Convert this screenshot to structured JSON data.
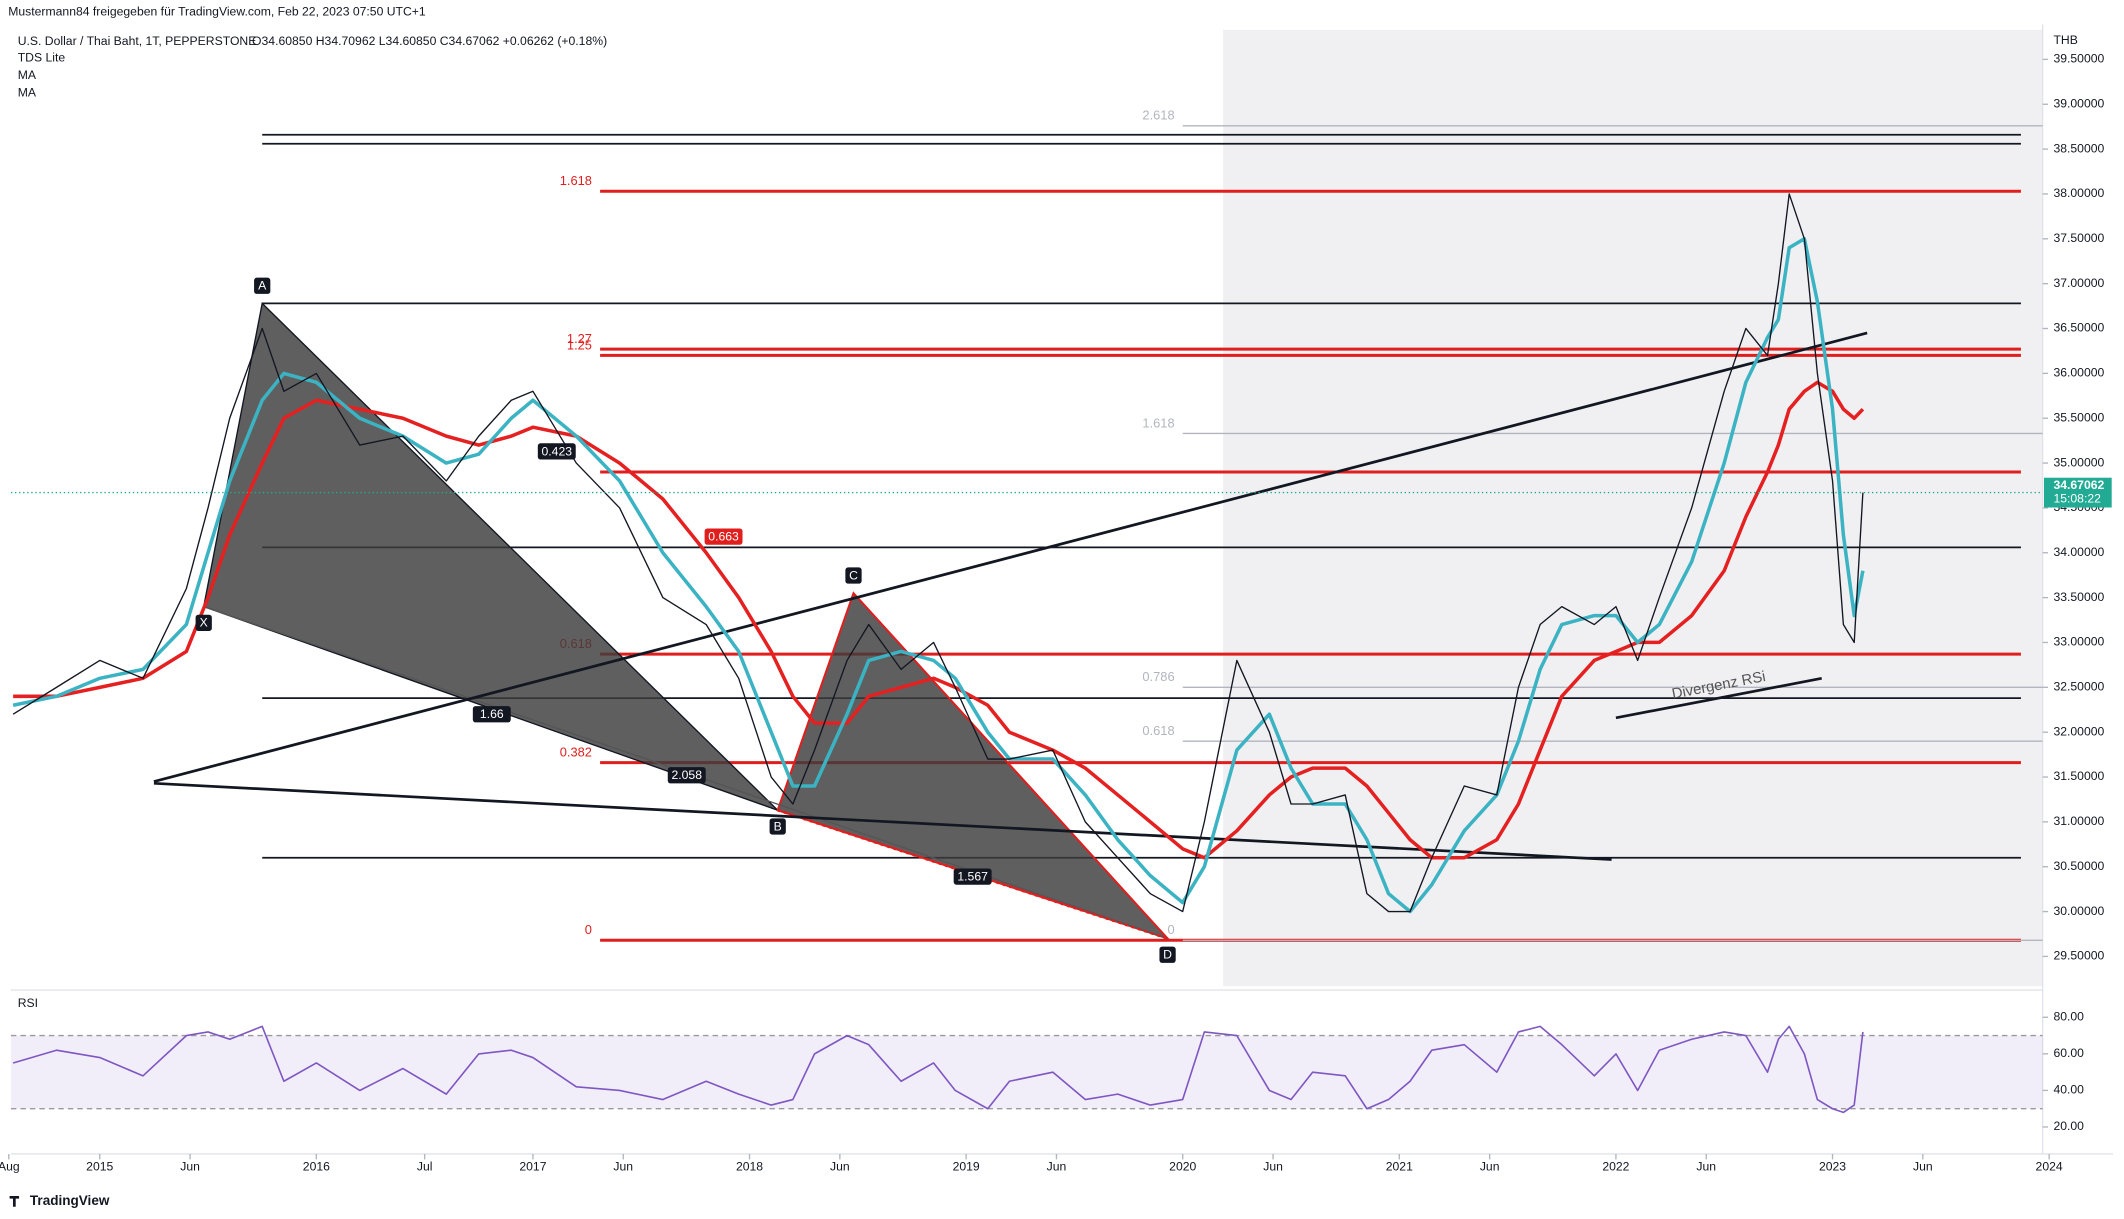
{
  "header": {
    "shared_by": "Mustermann84 freigegeben für TradingView.com, Feb 22, 2023 07:50 UTC+1",
    "brand": "TradingView"
  },
  "chart_data": {
    "type": "line",
    "title": "U.S. Dollar / Thai Baht, 1T, PEPPERSTONE",
    "ohlc": "O34.60850 H34.70962 L34.60850 C34.67062 +0.06262 (+0.18%)",
    "indicators": [
      "TDS Lite"
    ],
    "currency": "THB",
    "countdown": "15:08:22",
    "color": "#131722",
    "x": [
      2014.6,
      2014.8,
      2015.0,
      2015.2,
      2015.4,
      2015.5,
      2015.6,
      2015.75,
      2015.85,
      2016.0,
      2016.2,
      2016.4,
      2016.6,
      2016.75,
      2016.9,
      2017.0,
      2017.2,
      2017.4,
      2017.6,
      2017.8,
      2017.95,
      2018.1,
      2018.2,
      2018.3,
      2018.45,
      2018.55,
      2018.7,
      2018.85,
      2018.95,
      2019.1,
      2019.2,
      2019.4,
      2019.55,
      2019.7,
      2019.85,
      2020.0,
      2020.1,
      2020.25,
      2020.4,
      2020.5,
      2020.6,
      2020.75,
      2020.85,
      2020.95,
      2021.05,
      2021.15,
      2021.3,
      2021.45,
      2021.55,
      2021.65,
      2021.75,
      2021.9,
      2022.0,
      2022.1,
      2022.2,
      2022.35,
      2022.5,
      2022.6,
      2022.7,
      2022.75,
      2022.8,
      2022.87,
      2022.93,
      2023.0,
      2023.05,
      2023.1,
      2023.14
    ],
    "values": [
      32.2,
      32.5,
      32.8,
      32.6,
      33.6,
      34.5,
      35.5,
      36.5,
      35.8,
      36.0,
      35.2,
      35.3,
      34.8,
      35.3,
      35.7,
      35.8,
      35.0,
      34.5,
      33.5,
      33.2,
      32.6,
      31.5,
      31.2,
      31.8,
      32.8,
      33.2,
      32.7,
      33.0,
      32.5,
      31.7,
      31.7,
      31.8,
      31.0,
      30.6,
      30.2,
      30.0,
      31.0,
      32.8,
      32.0,
      31.2,
      31.2,
      31.3,
      30.2,
      30.0,
      30.0,
      30.6,
      31.4,
      31.3,
      32.5,
      33.2,
      33.4,
      33.2,
      33.4,
      32.8,
      33.5,
      34.5,
      35.8,
      36.5,
      36.2,
      37.0,
      38.0,
      37.5,
      36.0,
      34.8,
      33.2,
      33.0,
      34.67062
    ],
    "moving_averages": [
      {
        "name": "MA",
        "color": "#3bb3c3",
        "values": [
          32.3,
          32.4,
          32.6,
          32.7,
          33.2,
          34.0,
          34.8,
          35.7,
          36.0,
          35.9,
          35.5,
          35.3,
          35.0,
          35.1,
          35.5,
          35.7,
          35.3,
          34.8,
          34.0,
          33.4,
          32.9,
          32.0,
          31.4,
          31.4,
          32.2,
          32.8,
          32.9,
          32.8,
          32.6,
          32.0,
          31.7,
          31.7,
          31.3,
          30.8,
          30.4,
          30.1,
          30.5,
          31.8,
          32.2,
          31.6,
          31.2,
          31.2,
          30.8,
          30.2,
          30.0,
          30.3,
          30.9,
          31.3,
          31.9,
          32.7,
          33.2,
          33.3,
          33.3,
          33.0,
          33.2,
          33.9,
          35.0,
          35.9,
          36.4,
          36.6,
          37.4,
          37.5,
          36.8,
          35.6,
          34.2,
          33.3,
          33.8
        ]
      },
      {
        "name": "MA",
        "color": "#e52020",
        "values": [
          32.4,
          32.4,
          32.5,
          32.6,
          32.9,
          33.5,
          34.2,
          35.0,
          35.5,
          35.7,
          35.6,
          35.5,
          35.3,
          35.2,
          35.3,
          35.4,
          35.3,
          35.0,
          34.6,
          34.0,
          33.5,
          32.9,
          32.4,
          32.1,
          32.1,
          32.4,
          32.5,
          32.6,
          32.5,
          32.3,
          32.0,
          31.8,
          31.6,
          31.3,
          31.0,
          30.7,
          30.6,
          30.9,
          31.3,
          31.5,
          31.6,
          31.6,
          31.4,
          31.1,
          30.8,
          30.6,
          30.6,
          30.8,
          31.2,
          31.8,
          32.4,
          32.8,
          32.9,
          33.0,
          33.0,
          33.3,
          33.8,
          34.4,
          34.9,
          35.2,
          35.6,
          35.8,
          35.9,
          35.8,
          35.6,
          35.5,
          35.6
        ]
      }
    ],
    "xlim": [
      2014.59,
      2023.97
    ],
    "xticks": [
      {
        "value": 2014.58,
        "label": "Aug"
      },
      2015,
      {
        "value": 2015.417,
        "label": "Jun"
      },
      2016,
      {
        "value": 2016.5,
        "label": "Jul"
      },
      2017,
      {
        "value": 2017.417,
        "label": "Jun"
      },
      2018,
      {
        "value": 2018.417,
        "label": "Jun"
      },
      2019,
      {
        "value": 2019.417,
        "label": "Jun"
      },
      2020,
      {
        "value": 2020.417,
        "label": "Jun"
      },
      2021,
      {
        "value": 2021.417,
        "label": "Jun"
      },
      2022,
      {
        "value": 2022.417,
        "label": "Jun"
      },
      2023,
      {
        "value": 2023.417,
        "label": "Jun"
      },
      2024
    ],
    "ylim": [
      29.17,
      39.83
    ],
    "yticks": [
      {
        "value": 29.5,
        "label": "29.50000"
      },
      {
        "value": 30,
        "label": "30.00000"
      },
      {
        "value": 30.5,
        "label": "30.50000"
      },
      {
        "value": 31,
        "label": "31.00000"
      },
      {
        "value": 31.5,
        "label": "31.50000"
      },
      {
        "value": 32,
        "label": "32.00000"
      },
      {
        "value": 32.5,
        "label": "32.50000"
      },
      {
        "value": 33,
        "label": "33.00000"
      },
      {
        "value": 33.5,
        "label": "33.50000"
      },
      {
        "value": 34,
        "label": "34.00000"
      },
      {
        "value": 34.5,
        "label": "34.50000"
      },
      {
        "value": 35,
        "label": "35.00000"
      },
      {
        "value": 35.5,
        "label": "35.50000"
      },
      {
        "value": 36,
        "label": "36.00000"
      },
      {
        "value": 36.5,
        "label": "36.50000"
      },
      {
        "value": 37,
        "label": "37.00000"
      },
      {
        "value": 37.5,
        "label": "37.50000"
      },
      {
        "value": 38,
        "label": "38.00000"
      },
      {
        "value": 38.5,
        "label": "38.50000"
      },
      {
        "value": 39,
        "label": "39.00000"
      },
      {
        "value": 39.5,
        "label": "39.50000"
      }
    ],
    "fib_levels": [
      {
        "color": "#e01e1e",
        "x_start": 2017.31,
        "levels": [
          {
            "ratio": "1.618",
            "price": 38.03
          },
          {
            "ratio": "1.27",
            "price": 36.27
          },
          {
            "ratio": "1.25",
            "price": 36.2
          },
          {
            "ratio": "0.618",
            "price": 32.87
          },
          {
            "ratio": "0.382",
            "price": 31.66
          },
          {
            "ratio": "0",
            "price": 29.68
          }
        ]
      },
      {
        "color": "#b2b5be",
        "x_start": 2020.0,
        "levels": [
          {
            "ratio": "2.618",
            "price": 38.76
          },
          {
            "ratio": "1.618",
            "price": 35.33
          },
          {
            "ratio": "0.786",
            "price": 32.5
          },
          {
            "ratio": "0.618",
            "price": 31.9
          },
          {
            "ratio": "0",
            "price": 29.68
          }
        ]
      }
    ],
    "horizontal_lines": [
      38.66,
      38.56,
      36.78,
      34.06,
      32.38,
      30.6
    ],
    "red_line": 34.9,
    "pattern": {
      "points": [
        {
          "label": "X",
          "x": 2015.48,
          "price": 33.4
        },
        {
          "label": "A",
          "x": 2015.75,
          "price": 36.78
        },
        {
          "label": "B",
          "x": 2018.13,
          "price": 31.13
        },
        {
          "label": "C",
          "x": 2018.48,
          "price": 33.55
        },
        {
          "label": "D",
          "x": 2019.93,
          "price": 29.7
        }
      ],
      "ratios": [
        {
          "text": "0.423",
          "x": 2017.11,
          "price": 35.13
        },
        {
          "text": "0.663",
          "x": 2017.88,
          "price": 34.18
        },
        {
          "text": "1.66",
          "x": 2016.81,
          "price": 32.2
        },
        {
          "text": "2.058",
          "x": 2017.71,
          "price": 31.52
        },
        {
          "text": "1.567",
          "x": 2019.03,
          "price": 30.39
        }
      ]
    },
    "trend_lines": [
      {
        "from": [
          2015.25,
          31.45
        ],
        "to": [
          2023.16,
          36.45
        ]
      },
      {
        "from": [
          2015.25,
          31.43
        ],
        "to": [
          2021.98,
          30.58
        ]
      },
      {
        "from": [
          2022.0,
          32.16
        ],
        "to": [
          2022.95,
          32.6
        ],
        "label": "Divergenz RSi"
      }
    ],
    "rsi": {
      "label": "RSI",
      "color": "#7e57c2",
      "values": [
        55,
        62,
        58,
        48,
        70,
        72,
        68,
        75,
        45,
        55,
        40,
        52,
        38,
        60,
        62,
        58,
        42,
        40,
        35,
        45,
        38,
        32,
        35,
        60,
        70,
        65,
        45,
        55,
        40,
        30,
        45,
        50,
        35,
        38,
        32,
        35,
        72,
        70,
        40,
        35,
        50,
        48,
        30,
        35,
        45,
        62,
        65,
        50,
        72,
        75,
        65,
        48,
        60,
        40,
        62,
        68,
        72,
        70,
        50,
        68,
        75,
        60,
        35,
        30,
        28,
        32,
        72
      ],
      "ylim": [
        6.7,
        91.9
      ],
      "yticks": [
        {
          "value": 20,
          "label": "20.00"
        },
        {
          "value": 40,
          "label": "40.00"
        },
        {
          "value": 60,
          "label": "60.00"
        },
        {
          "value": 80,
          "label": "80.00"
        }
      ],
      "bands": [
        30,
        70
      ]
    }
  }
}
